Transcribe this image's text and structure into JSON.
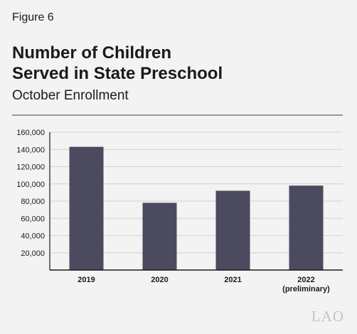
{
  "figure_label": "Figure 6",
  "title_lines": [
    "Number of Children",
    "Served in State Preschool"
  ],
  "subtitle": "October Enrollment",
  "logo_text": "LAO",
  "colors": {
    "bar": "#4b4a5e",
    "grid": "#d2d2d2",
    "axis": "#1a1a1a"
  },
  "chart_data": {
    "type": "bar",
    "title": "Number of Children Served in State Preschool",
    "subtitle": "October Enrollment",
    "categories": [
      "2019",
      "2020",
      "2021",
      "2022"
    ],
    "category_sublabels": [
      "",
      "",
      "",
      "(preliminary)"
    ],
    "values": [
      143000,
      78000,
      92000,
      98000
    ],
    "ylim": [
      0,
      160000
    ],
    "yticks": [
      20000,
      40000,
      60000,
      80000,
      100000,
      120000,
      140000,
      160000
    ],
    "ytick_labels": [
      "20,000",
      "40,000",
      "60,000",
      "80,000",
      "100,000",
      "120,000",
      "140,000",
      "160,000"
    ],
    "grid": true,
    "xlabel": "",
    "ylabel": ""
  }
}
